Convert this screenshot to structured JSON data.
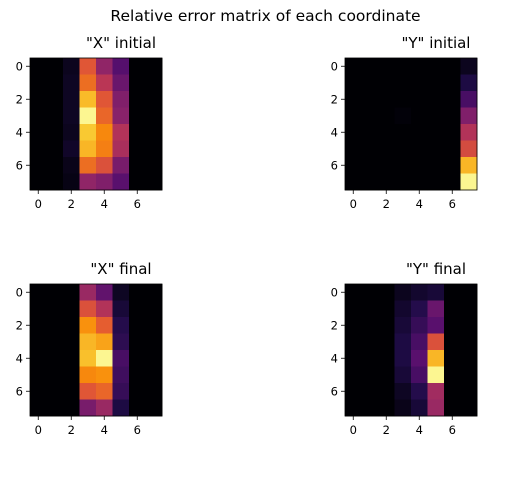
{
  "suptitle": "Relative error matrix of each coordinate",
  "chart_data": [
    {
      "type": "heatmap",
      "title": "\"X\" initial",
      "colormap": "inferno",
      "xticks": [
        0,
        2,
        4,
        6
      ],
      "yticks": [
        0,
        2,
        4,
        6
      ],
      "xlim": [
        -0.5,
        7.5
      ],
      "ylim": [
        7.5,
        -0.5
      ],
      "values": [
        [
          0,
          0,
          0.05,
          0.62,
          0.4,
          0.25,
          0,
          0
        ],
        [
          0,
          0,
          0.06,
          0.68,
          0.5,
          0.3,
          0,
          0
        ],
        [
          0,
          0,
          0.06,
          0.85,
          0.62,
          0.36,
          0,
          0
        ],
        [
          0,
          0,
          0.06,
          0.98,
          0.66,
          0.38,
          0,
          0
        ],
        [
          0,
          0,
          0.05,
          0.88,
          0.74,
          0.48,
          0,
          0
        ],
        [
          0,
          0,
          0.07,
          0.84,
          0.72,
          0.46,
          0,
          0
        ],
        [
          0,
          0,
          0.04,
          0.68,
          0.6,
          0.34,
          0,
          0
        ],
        [
          0,
          0,
          0.03,
          0.4,
          0.36,
          0.26,
          0,
          0
        ]
      ]
    },
    {
      "type": "heatmap",
      "title": "\"Y\" initial",
      "colormap": "inferno",
      "xticks": [
        0,
        2,
        4,
        6
      ],
      "yticks": [
        0,
        2,
        4,
        6
      ],
      "xlim": [
        -0.5,
        7.5
      ],
      "ylim": [
        7.5,
        -0.5
      ],
      "values": [
        [
          0,
          0,
          0,
          0,
          0,
          0,
          0,
          0.05
        ],
        [
          0,
          0,
          0,
          0,
          0,
          0,
          0,
          0.12
        ],
        [
          0,
          0,
          0,
          0,
          0,
          0,
          0,
          0.22
        ],
        [
          0,
          0,
          0,
          0.01,
          0,
          0,
          0,
          0.36
        ],
        [
          0,
          0,
          0,
          0,
          0,
          0,
          0,
          0.48
        ],
        [
          0,
          0,
          0,
          0,
          0,
          0,
          0,
          0.58
        ],
        [
          0,
          0,
          0,
          0,
          0,
          0,
          0,
          0.84
        ],
        [
          0,
          0,
          0,
          0,
          0,
          0,
          0,
          0.98
        ]
      ]
    },
    {
      "type": "heatmap",
      "title": "\"X\" final",
      "colormap": "inferno",
      "xticks": [
        0,
        2,
        4,
        6
      ],
      "yticks": [
        0,
        2,
        4,
        6
      ],
      "xlim": [
        -0.5,
        7.5
      ],
      "ylim": [
        7.5,
        -0.5
      ],
      "values": [
        [
          0,
          0,
          0,
          0.42,
          0.28,
          0.06,
          0,
          0
        ],
        [
          0,
          0,
          0,
          0.6,
          0.48,
          0.1,
          0,
          0
        ],
        [
          0,
          0,
          0,
          0.76,
          0.64,
          0.14,
          0,
          0
        ],
        [
          0,
          0,
          0,
          0.84,
          0.8,
          0.16,
          0,
          0
        ],
        [
          0,
          0,
          0,
          0.86,
          0.98,
          0.22,
          0,
          0
        ],
        [
          0,
          0,
          0,
          0.74,
          0.76,
          0.2,
          0,
          0
        ],
        [
          0,
          0,
          0,
          0.62,
          0.66,
          0.18,
          0,
          0
        ],
        [
          0,
          0,
          0,
          0.34,
          0.42,
          0.12,
          0,
          0
        ]
      ]
    },
    {
      "type": "heatmap",
      "title": "\"Y\" final",
      "colormap": "inferno",
      "xticks": [
        0,
        2,
        4,
        6
      ],
      "yticks": [
        0,
        2,
        4,
        6
      ],
      "xlim": [
        -0.5,
        7.5
      ],
      "ylim": [
        7.5,
        -0.5
      ],
      "values": [
        [
          0,
          0,
          0,
          0.05,
          0.08,
          0.1,
          0,
          0
        ],
        [
          0,
          0,
          0,
          0.08,
          0.14,
          0.3,
          0,
          0
        ],
        [
          0,
          0,
          0,
          0.1,
          0.18,
          0.26,
          0,
          0
        ],
        [
          0,
          0,
          0,
          0.12,
          0.22,
          0.6,
          0,
          0
        ],
        [
          0,
          0,
          0,
          0.12,
          0.26,
          0.84,
          0,
          0
        ],
        [
          0,
          0,
          0,
          0.1,
          0.22,
          0.98,
          0,
          0
        ],
        [
          0,
          0,
          0,
          0.06,
          0.14,
          0.44,
          0,
          0
        ],
        [
          0,
          0,
          0,
          0.04,
          0.1,
          0.42,
          0,
          0
        ]
      ]
    }
  ]
}
